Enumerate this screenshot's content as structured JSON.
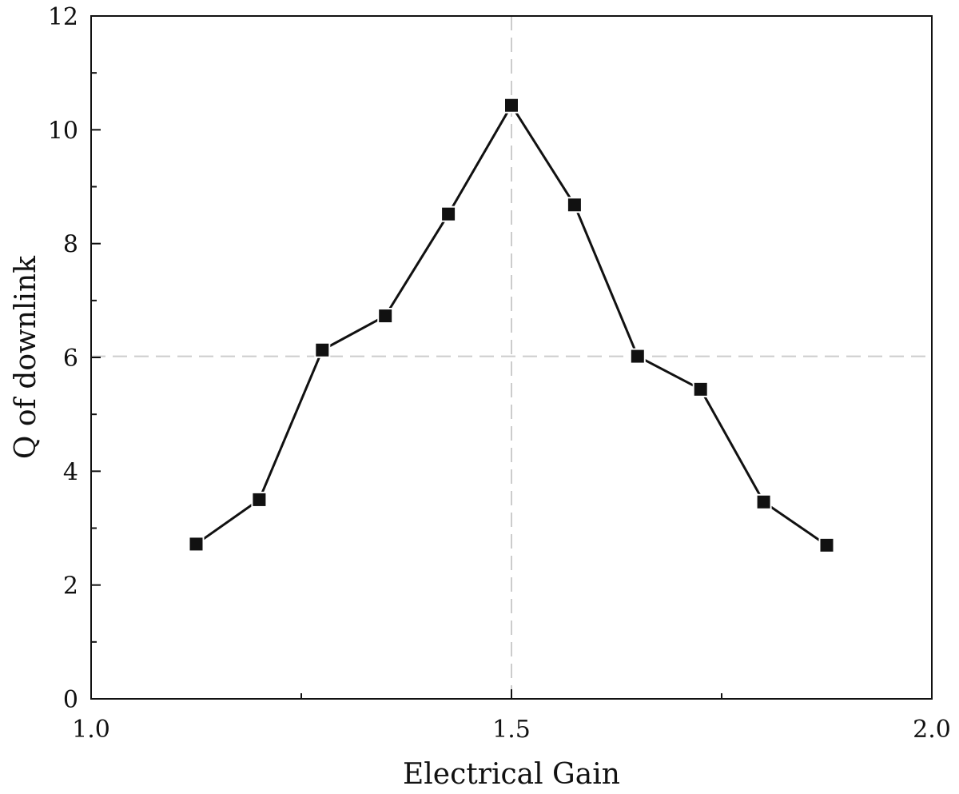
{
  "chart_data": {
    "type": "line",
    "xlabel": "Electrical Gain",
    "ylabel": "Q of downlink",
    "xlim": [
      1.0,
      2.0
    ],
    "ylim": [
      0,
      12
    ],
    "x_ticks": [
      1.0,
      1.5,
      2.0
    ],
    "x_tick_labels": [
      "1.0",
      "1.5",
      "2.0"
    ],
    "x_minor_ticks": [
      1.25,
      1.75
    ],
    "y_ticks": [
      0,
      2,
      4,
      6,
      8,
      10,
      12
    ],
    "y_tick_labels": [
      "0",
      "2",
      "4",
      "6",
      "8",
      "10",
      "12"
    ],
    "y_minor_ticks": [
      1,
      3,
      5,
      7,
      9,
      11
    ],
    "grid": false,
    "marker": "square",
    "series": [
      {
        "color": "#111111",
        "x": [
          1.125,
          1.2,
          1.275,
          1.35,
          1.425,
          1.5,
          1.575,
          1.65,
          1.725,
          1.8,
          1.875
        ],
        "y": [
          2.72,
          3.5,
          6.13,
          6.73,
          8.52,
          10.43,
          8.68,
          6.02,
          5.44,
          3.46,
          2.7
        ]
      }
    ],
    "reference_lines": [
      {
        "orientation": "horizontal",
        "value": 6.02,
        "style": "dashed",
        "color": "#cccccc"
      },
      {
        "orientation": "vertical",
        "value": 1.5,
        "style": "dashed",
        "color": "#cccccc"
      }
    ]
  }
}
